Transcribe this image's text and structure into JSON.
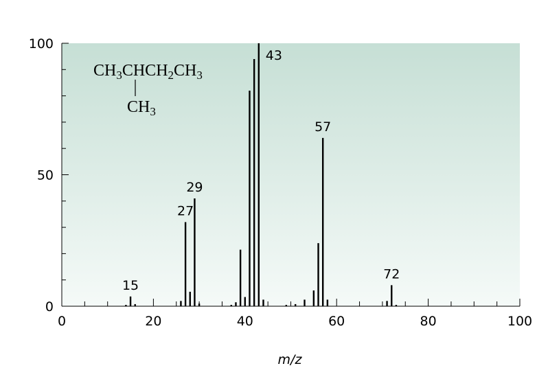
{
  "chart_data": {
    "type": "stem",
    "xlabel": "m/z",
    "x": [
      14,
      15,
      16,
      26,
      27,
      28,
      29,
      30,
      37,
      38,
      39,
      40,
      41,
      42,
      43,
      44,
      49,
      51,
      53,
      55,
      56,
      57,
      58,
      71,
      72,
      73
    ],
    "values": [
      0.5,
      3.7,
      0.8,
      2,
      32,
      5.5,
      41,
      1,
      0.5,
      1.5,
      21.5,
      3.5,
      82,
      94,
      100,
      2.5,
      0.5,
      0.8,
      2.5,
      6,
      24,
      64,
      2.5,
      2,
      8,
      0.5
    ],
    "color": "#000000",
    "labeled_peaks": [
      15,
      27,
      29,
      43,
      57,
      72
    ],
    "structure_main": [
      "CH",
      "3",
      "CHCH",
      "2",
      "CH",
      "3"
    ],
    "structure_branch": [
      "CH",
      "3"
    ],
    "xlim": [
      0,
      100
    ],
    "xticks": [
      0,
      20,
      40,
      60,
      80,
      100
    ],
    "xminorticks": [
      5,
      10,
      15,
      25,
      30,
      35,
      45,
      50,
      55,
      65,
      70,
      75,
      85,
      90,
      95
    ],
    "ylim": [
      0,
      100
    ],
    "yticks": [
      0,
      50,
      100
    ],
    "yminorticks": [
      10,
      20,
      30,
      40,
      60,
      70,
      80,
      90
    ]
  }
}
